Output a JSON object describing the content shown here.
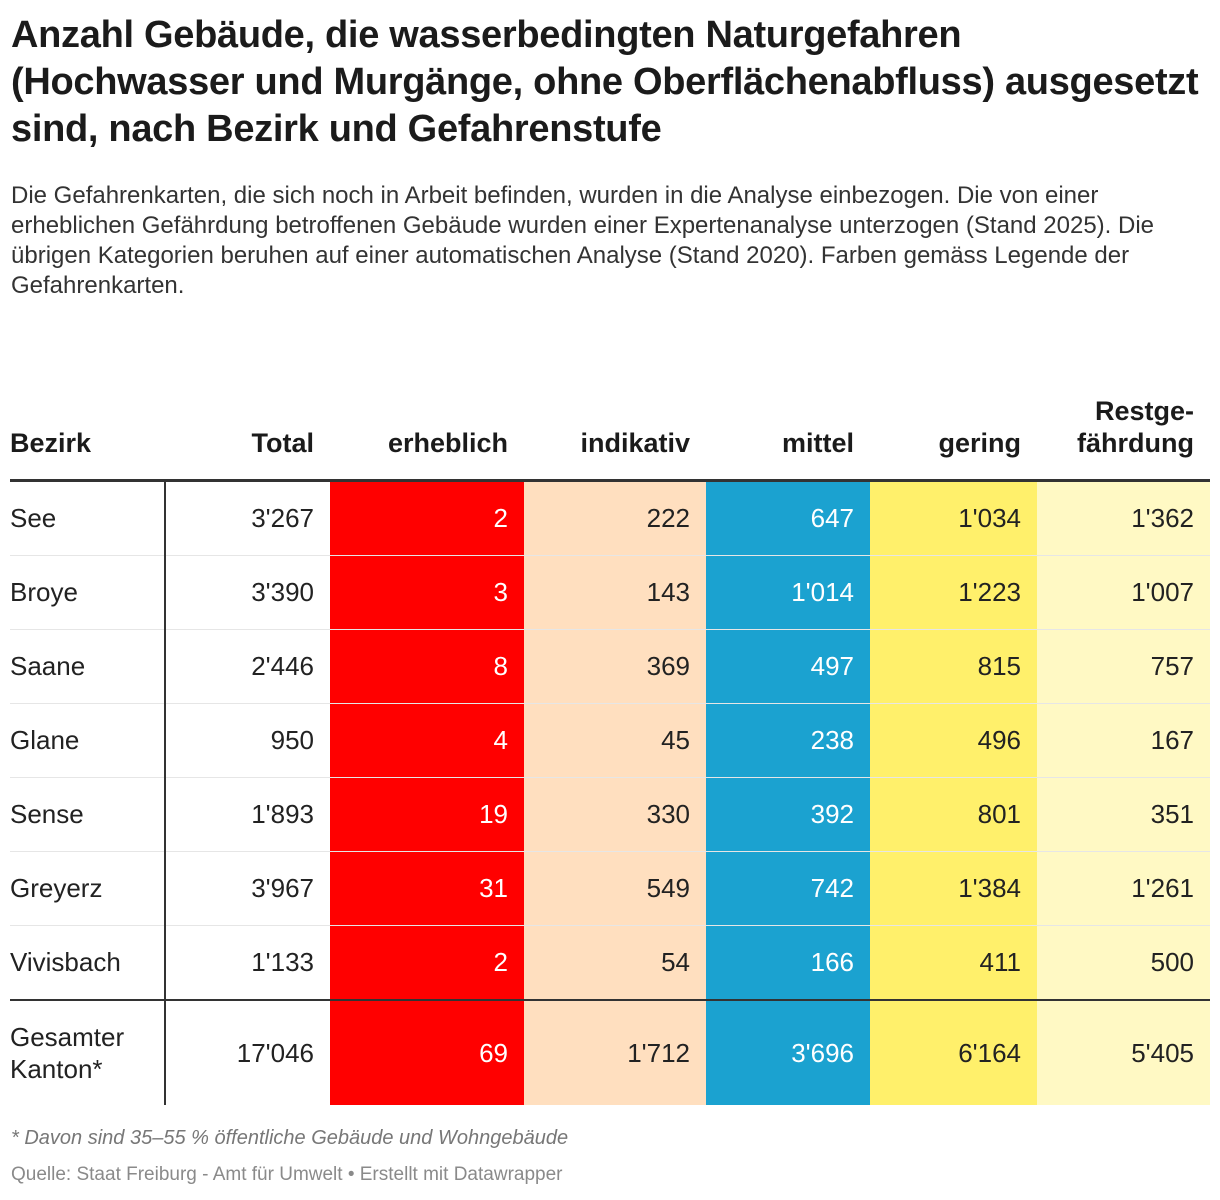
{
  "title": "Anzahl Gebäude, die wasserbedingten Naturgefahren (Hochwasser und Murgänge, ohne Oberflächenabfluss) ausgesetzt sind, nach Bezirk und Gefahrenstufe",
  "subtitle": "Die Gefahrenkarten, die sich noch in Arbeit befinden, wurden in die Analyse einbezogen. Die von einer erheblichen Gefährdung betroffenen Gebäude wurden einer Expertenanalyse unterzogen (Stand 2025). Die übrigen Kategorien beruhen auf einer automatischen Analyse (Stand 2020). Farben gemäss Legende der Gefahrenkarten.",
  "footnote": "* Davon sind 35–55 % öffentliche Gebäude und Wohngebäude",
  "source": "Quelle: Staat Freiburg - Amt für Umwelt • Erstellt mit Datawrapper",
  "colors": {
    "erheblich": "#ff0000",
    "indikativ": "#ffdfbf",
    "mittel": "#1ba2d0",
    "gering": "#fff06b",
    "restgefaehrdung": "#fff9c4"
  },
  "chart_data": {
    "type": "table",
    "columns": [
      "Bezirk",
      "Total",
      "erheblich",
      "indikativ",
      "mittel",
      "gering",
      "Restge-\nfährdung"
    ],
    "rows": [
      [
        "See",
        "3'267",
        "2",
        "222",
        "647",
        "1'034",
        "1'362"
      ],
      [
        "Broye",
        "3'390",
        "3",
        "143",
        "1'014",
        "1'223",
        "1'007"
      ],
      [
        "Saane",
        "2'446",
        "8",
        "369",
        "497",
        "815",
        "757"
      ],
      [
        "Glane",
        "950",
        "4",
        "45",
        "238",
        "496",
        "167"
      ],
      [
        "Sense",
        "1'893",
        "19",
        "330",
        "392",
        "801",
        "351"
      ],
      [
        "Greyerz",
        "3'967",
        "31",
        "549",
        "742",
        "1'384",
        "1'261"
      ],
      [
        "Vivisbach",
        "1'133",
        "2",
        "54",
        "166",
        "411",
        "500"
      ],
      [
        "Gesamter\nKanton*",
        "17'046",
        "69",
        "1'712",
        "3'696",
        "6'164",
        "5'405"
      ]
    ]
  }
}
